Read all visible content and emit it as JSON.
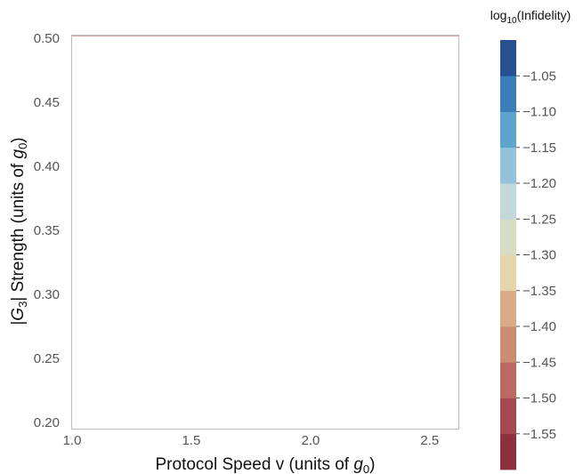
{
  "chart_data": {
    "type": "contour",
    "xlabel": "Protocol Speed v (units of ",
    "xlabel_var": "g",
    "xlabel_sub": "0",
    "xlabel_end": ")",
    "ylabel_prefix": "|",
    "ylabel_var": "G",
    "ylabel_sub": "3",
    "ylabel_mid": "| Strength (units of ",
    "ylabel_var2": "g",
    "ylabel_sub2": "0",
    "ylabel_end": ")",
    "xlim": [
      1.0,
      2.62
    ],
    "ylim": [
      0.195,
      0.502
    ],
    "xticks": [
      "1.0",
      "1.5",
      "2.0",
      "2.5"
    ],
    "xtick_values": [
      1.0,
      1.5,
      2.0,
      2.5
    ],
    "yticks": [
      "0.20",
      "0.25",
      "0.30",
      "0.35",
      "0.40",
      "0.45",
      "0.50"
    ],
    "ytick_values": [
      0.2,
      0.25,
      0.3,
      0.35,
      0.4,
      0.45,
      0.5
    ],
    "colorbar": {
      "title_prefix": "log",
      "title_sub": "10",
      "title_suffix": "(Infidelity)",
      "range": [
        -1.6,
        -1.0
      ],
      "tick_labels": [
        "−1.05",
        "−1.10",
        "−1.15",
        "−1.20",
        "−1.25",
        "−1.30",
        "−1.35",
        "−1.40",
        "−1.45",
        "−1.50",
        "−1.55"
      ],
      "tick_values": [
        -1.05,
        -1.1,
        -1.15,
        -1.2,
        -1.25,
        -1.3,
        -1.35,
        -1.4,
        -1.45,
        -1.5,
        -1.55
      ]
    },
    "levels": [
      -1.6,
      -1.55,
      -1.5,
      -1.45,
      -1.4,
      -1.35,
      -1.3,
      -1.25,
      -1.2,
      -1.15,
      -1.1,
      -1.05,
      -1.0
    ],
    "level_colors": [
      "#26508f",
      "#3a7fb8",
      "#5ea4cc",
      "#93c2da",
      "#c2d9dc",
      "#d6ddc3",
      "#e6d4ab",
      "#d9ab86",
      "#cb8d71",
      "#bc6962",
      "#a64850",
      "#8e3040"
    ],
    "grid": false
  }
}
